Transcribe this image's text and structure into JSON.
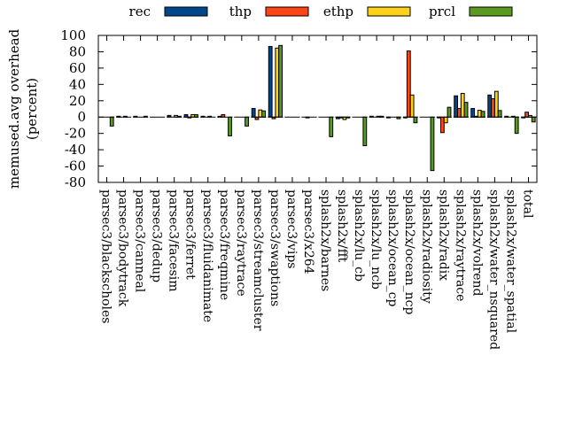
{
  "chart_data": {
    "type": "bar",
    "title": "",
    "xlabel": "",
    "ylabel": "memused.avg overhead",
    "ylabel2": "(percent)",
    "ylim": [
      -80,
      100
    ],
    "yticks": [
      100,
      80,
      60,
      40,
      20,
      0,
      -20,
      -40,
      -60,
      -80
    ],
    "grid": false,
    "legend_position": "top",
    "categories": [
      "parsec3/blackscholes",
      "parsec3/bodytrack",
      "parsec3/canneal",
      "parsec3/dedup",
      "parsec3/facesim",
      "parsec3/ferret",
      "parsec3/fluidanimate",
      "parsec3/freqmine",
      "parsec3/raytrace",
      "parsec3/streamcluster",
      "parsec3/swaptions",
      "parsec3/vips",
      "parsec3/x264",
      "splash2x/barnes",
      "splash2x/fft",
      "splash2x/lu_cb",
      "splash2x/lu_ncb",
      "splash2x/ocean_cp",
      "splash2x/ocean_ncp",
      "splash2x/radiosity",
      "splash2x/radix",
      "splash2x/raytrace",
      "splash2x/volrend",
      "splash2x/water_nsquared",
      "splash2x/water_spatial",
      "total"
    ],
    "series": [
      {
        "name": "rec",
        "color": "#00468b",
        "values": [
          0,
          1,
          1,
          0,
          2,
          3,
          1,
          1,
          0,
          10.5,
          86.5,
          0,
          0,
          0,
          -2,
          0,
          1,
          -1,
          -1,
          0,
          -1,
          26,
          10.5,
          27,
          1,
          -1
        ]
      },
      {
        "name": "thp",
        "color": "#ff4513",
        "values": [
          0,
          0,
          0,
          0,
          0,
          -1,
          0,
          3,
          0,
          -3,
          -2,
          0,
          -1,
          0,
          -1,
          0,
          0,
          0,
          81,
          0,
          -19,
          10.5,
          1,
          22.5,
          0,
          6
        ]
      },
      {
        "name": "ethp",
        "color": "#ffd21a",
        "values": [
          0,
          1,
          0,
          0,
          2,
          3,
          1,
          0,
          0,
          8.7,
          84.5,
          0,
          0,
          0,
          -3,
          0,
          1,
          0,
          27,
          0,
          -7,
          29,
          8.3,
          31.5,
          1,
          2
        ]
      },
      {
        "name": "prcl",
        "color": "#5a9b1f",
        "values": [
          -11,
          0,
          1,
          0,
          1,
          3,
          0,
          -23,
          -11,
          7.6,
          87.7,
          0,
          0,
          -24,
          -1,
          -35,
          1,
          -2,
          -7,
          -65.5,
          12,
          18,
          7,
          8,
          -20,
          -6
        ]
      }
    ]
  }
}
